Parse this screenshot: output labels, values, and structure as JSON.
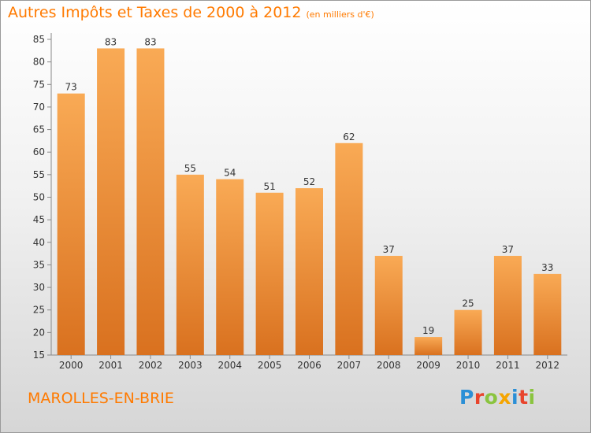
{
  "title": "Autres Impôts et Taxes de 2000 à 2012",
  "unit": "(en milliers d'€)",
  "city": "MAROLLES-EN-BRIE",
  "logo": {
    "letters": [
      "P",
      "r",
      "o",
      "x",
      "i",
      "t",
      "i"
    ],
    "colors": [
      "#2b8fd6",
      "#e8442c",
      "#8ac43f",
      "#f5a500",
      "#2b8fd6",
      "#e8442c",
      "#8ac43f"
    ]
  },
  "colors": {
    "accent": "#ff7a00",
    "bar_top": "#f9aa55",
    "bar_bottom": "#d9711f"
  },
  "chart_data": {
    "type": "bar",
    "categories": [
      "2000",
      "2001",
      "2002",
      "2003",
      "2004",
      "2005",
      "2006",
      "2007",
      "2008",
      "2009",
      "2010",
      "2011",
      "2012"
    ],
    "values": [
      73,
      83,
      83,
      55,
      54,
      51,
      52,
      62,
      37,
      19,
      25,
      37,
      33
    ],
    "title": "Autres Impôts et Taxes de 2000 à 2012",
    "xlabel": "",
    "ylabel": "",
    "ylim": [
      15,
      85
    ],
    "yticks": [
      15,
      20,
      25,
      30,
      35,
      40,
      45,
      50,
      55,
      60,
      65,
      70,
      75,
      80,
      85
    ],
    "grid": false,
    "data_labels": true
  }
}
